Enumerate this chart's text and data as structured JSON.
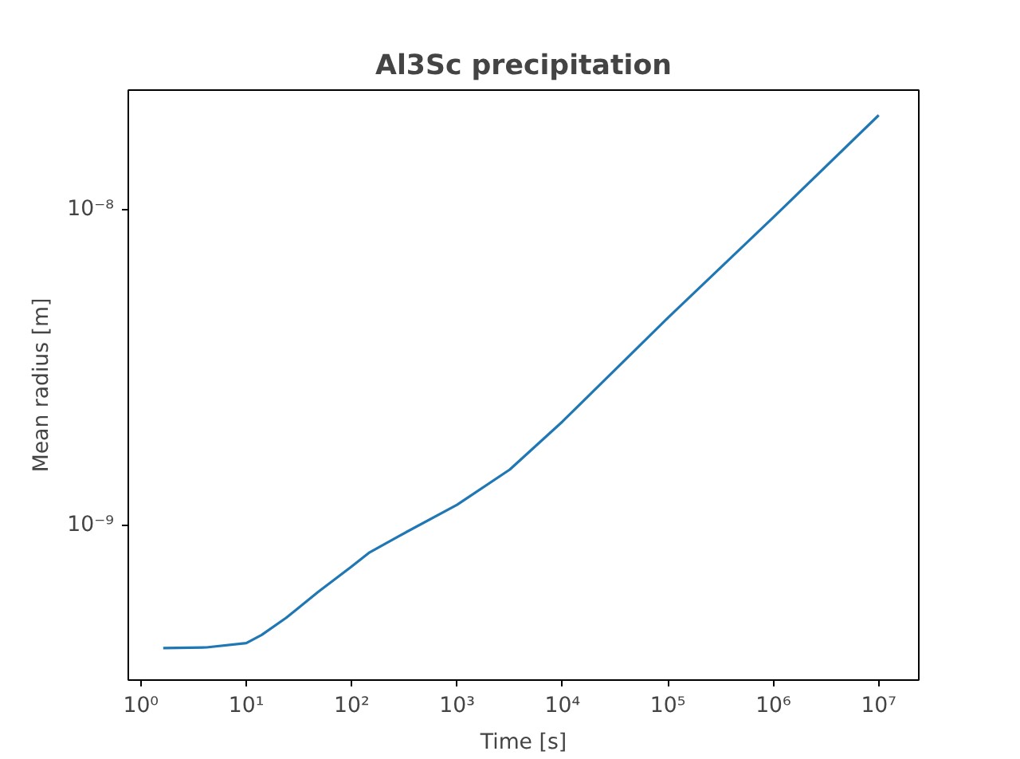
{
  "chart_data": {
    "type": "line",
    "title": "Al3Sc precipitation",
    "xlabel": "Time [s]",
    "ylabel": "Mean radius [m]",
    "log": "xy",
    "grid": false,
    "x": [
      1.63,
      4.2,
      10,
      14,
      24,
      48,
      100,
      148,
      275,
      1000,
      3160,
      10000,
      100000,
      1000000,
      10000000
    ],
    "series": [
      {
        "color": "#1f77b4",
        "values": [
          4.08e-10,
          4.1e-10,
          4.23e-10,
          4.49e-10,
          5.09e-10,
          6.14e-10,
          7.4e-10,
          8.2e-10,
          9.2e-10,
          1.16e-09,
          1.5e-09,
          2.13e-09,
          4.54e-09,
          9.44e-09,
          1.99e-08
        ]
      }
    ],
    "xlim": [
      0.76,
      24000000
    ],
    "ylim": [
      3.23e-10,
      2.39e-08
    ],
    "xticks": [
      {
        "value": 1,
        "label": "10⁰"
      },
      {
        "value": 10,
        "label": "10¹"
      },
      {
        "value": 100,
        "label": "10²"
      },
      {
        "value": 1000,
        "label": "10³"
      },
      {
        "value": 10000,
        "label": "10⁴"
      },
      {
        "value": 100000,
        "label": "10⁵"
      },
      {
        "value": 1000000,
        "label": "10⁶"
      },
      {
        "value": 10000000,
        "label": "10⁷"
      }
    ],
    "yticks": [
      {
        "value": 1e-09,
        "label": "10⁻⁹"
      },
      {
        "value": 1e-08,
        "label": "10⁻⁸"
      }
    ]
  }
}
